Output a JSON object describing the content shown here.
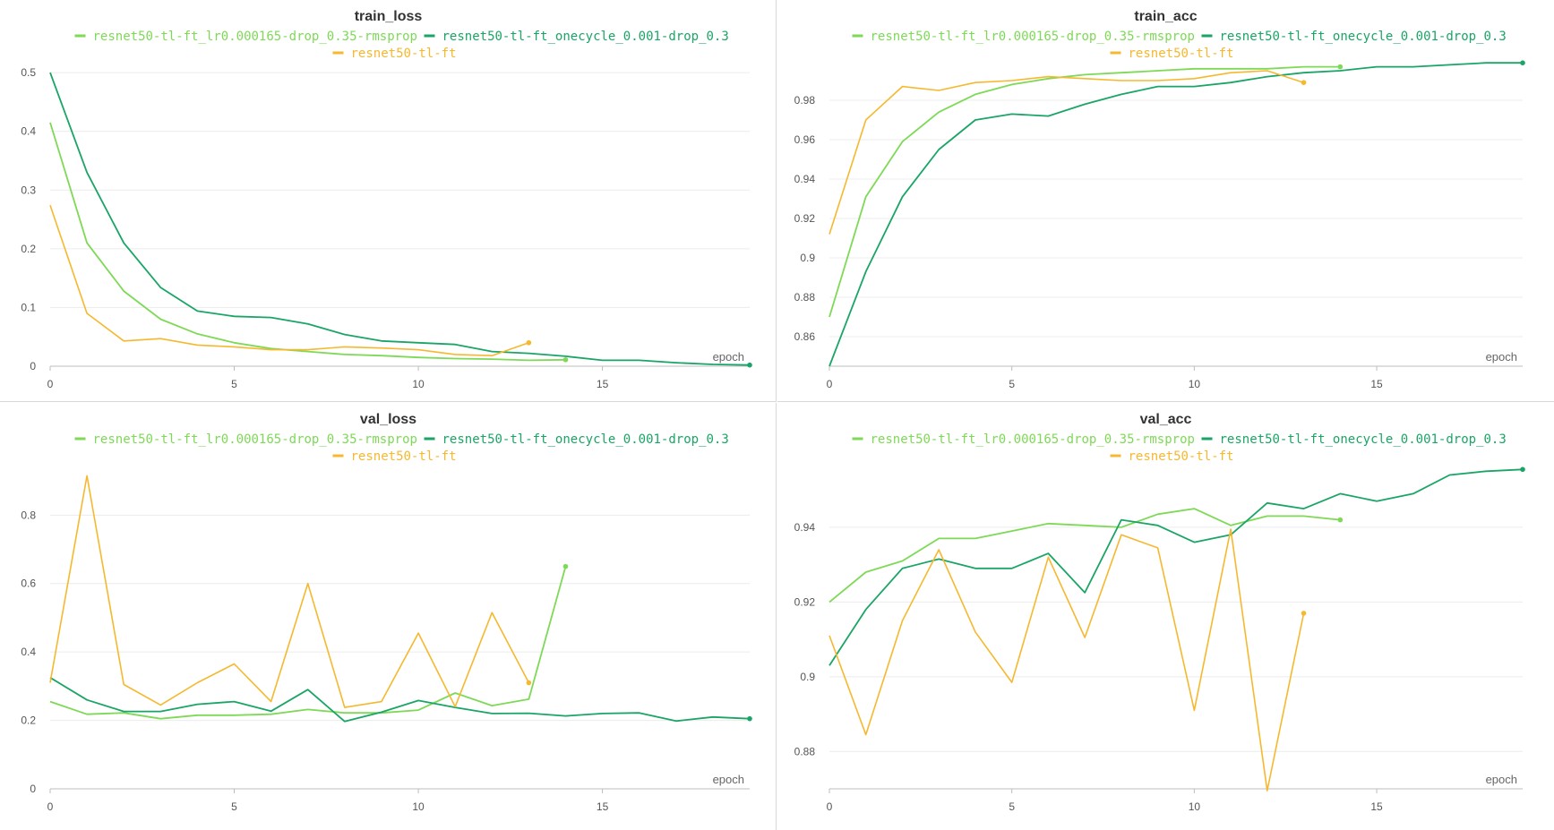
{
  "colors": {
    "series_a": "#7ed957",
    "series_b": "#1aa566",
    "series_c": "#f5b82e"
  },
  "chart_data": [
    {
      "type": "line",
      "title": "train_loss",
      "xlabel": "epoch",
      "ylabel": "",
      "xlim": [
        0,
        19
      ],
      "ylim": [
        0,
        0.52
      ],
      "xticks": [
        0,
        5,
        10,
        15
      ],
      "yticks": [
        0,
        0.1,
        0.2,
        0.3,
        0.4,
        0.5
      ],
      "ytick_labels": [
        "0",
        "0.1",
        "0.2",
        "0.3",
        "0.4",
        "0.5"
      ],
      "grid": true,
      "legend_position": "top-center",
      "series": [
        {
          "name": "resnet50-tl-ft_lr0.000165-drop_0.35-rmsprop",
          "color": "#7ed957",
          "x": [
            0,
            1,
            2,
            3,
            4,
            5,
            6,
            7,
            8,
            9,
            10,
            11,
            12,
            13,
            14
          ],
          "y": [
            0.415,
            0.21,
            0.128,
            0.08,
            0.055,
            0.04,
            0.03,
            0.025,
            0.02,
            0.018,
            0.015,
            0.013,
            0.012,
            0.01,
            0.011
          ]
        },
        {
          "name": "resnet50-tl-ft_onecycle_0.001-drop_0.3",
          "color": "#1aa566",
          "x": [
            0,
            1,
            2,
            3,
            4,
            5,
            6,
            7,
            8,
            9,
            10,
            11,
            12,
            13,
            14,
            15,
            16,
            17,
            18,
            19
          ],
          "y": [
            0.5,
            0.33,
            0.21,
            0.134,
            0.094,
            0.085,
            0.083,
            0.072,
            0.054,
            0.043,
            0.04,
            0.037,
            0.025,
            0.022,
            0.017,
            0.01,
            0.01,
            0.006,
            0.003,
            0.002
          ]
        },
        {
          "name": "resnet50-tl-ft",
          "color": "#f5b82e",
          "x": [
            0,
            1,
            2,
            3,
            4,
            5,
            6,
            7,
            8,
            9,
            10,
            11,
            12,
            13
          ],
          "y": [
            0.274,
            0.09,
            0.043,
            0.047,
            0.036,
            0.033,
            0.028,
            0.028,
            0.033,
            0.031,
            0.028,
            0.02,
            0.018,
            0.04
          ]
        }
      ]
    },
    {
      "type": "line",
      "title": "train_acc",
      "xlabel": "epoch",
      "ylabel": "",
      "xlim": [
        0,
        19
      ],
      "ylim": [
        0.845,
        1.0
      ],
      "xticks": [
        0,
        5,
        10,
        15
      ],
      "yticks": [
        0.86,
        0.88,
        0.9,
        0.92,
        0.94,
        0.96,
        0.98
      ],
      "ytick_labels": [
        "0.86",
        "0.88",
        "0.9",
        "0.92",
        "0.94",
        "0.96",
        "0.98"
      ],
      "grid": true,
      "legend_position": "top-center",
      "series": [
        {
          "name": "resnet50-tl-ft_lr0.000165-drop_0.35-rmsprop",
          "color": "#7ed957",
          "x": [
            0,
            1,
            2,
            3,
            4,
            5,
            6,
            7,
            8,
            9,
            10,
            11,
            12,
            13,
            14
          ],
          "y": [
            0.87,
            0.931,
            0.959,
            0.974,
            0.983,
            0.988,
            0.991,
            0.993,
            0.994,
            0.995,
            0.996,
            0.996,
            0.996,
            0.997,
            0.997
          ]
        },
        {
          "name": "resnet50-tl-ft_onecycle_0.001-drop_0.3",
          "color": "#1aa566",
          "x": [
            0,
            1,
            2,
            3,
            4,
            5,
            6,
            7,
            8,
            9,
            10,
            11,
            12,
            13,
            14,
            15,
            16,
            17,
            18,
            19
          ],
          "y": [
            0.845,
            0.893,
            0.931,
            0.955,
            0.97,
            0.973,
            0.972,
            0.978,
            0.983,
            0.987,
            0.987,
            0.989,
            0.992,
            0.994,
            0.995,
            0.997,
            0.997,
            0.998,
            0.999,
            0.999
          ]
        },
        {
          "name": "resnet50-tl-ft",
          "color": "#f5b82e",
          "x": [
            0,
            1,
            2,
            3,
            4,
            5,
            6,
            7,
            8,
            9,
            10,
            11,
            12,
            13
          ],
          "y": [
            0.912,
            0.97,
            0.987,
            0.985,
            0.989,
            0.99,
            0.992,
            0.991,
            0.99,
            0.99,
            0.991,
            0.994,
            0.995,
            0.989
          ]
        }
      ]
    },
    {
      "type": "line",
      "title": "val_loss",
      "xlabel": "epoch",
      "ylabel": "",
      "xlim": [
        0,
        19
      ],
      "ylim": [
        0,
        0.95
      ],
      "xticks": [
        0,
        5,
        10,
        15
      ],
      "yticks": [
        0,
        0.2,
        0.4,
        0.6,
        0.8
      ],
      "ytick_labels": [
        "0",
        "0.2",
        "0.4",
        "0.6",
        "0.8"
      ],
      "grid": true,
      "legend_position": "top-center",
      "series": [
        {
          "name": "resnet50-tl-ft_lr0.000165-drop_0.35-rmsprop",
          "color": "#7ed957",
          "x": [
            0,
            1,
            2,
            3,
            4,
            5,
            6,
            7,
            8,
            9,
            10,
            11,
            12,
            13,
            14
          ],
          "y": [
            0.255,
            0.218,
            0.222,
            0.205,
            0.215,
            0.215,
            0.218,
            0.232,
            0.222,
            0.222,
            0.23,
            0.28,
            0.243,
            0.262,
            0.65
          ]
        },
        {
          "name": "resnet50-tl-ft_onecycle_0.001-drop_0.3",
          "color": "#1aa566",
          "x": [
            0,
            1,
            2,
            3,
            4,
            5,
            6,
            7,
            8,
            9,
            10,
            11,
            12,
            13,
            14,
            15,
            16,
            17,
            18,
            19
          ],
          "y": [
            0.325,
            0.26,
            0.226,
            0.226,
            0.247,
            0.255,
            0.227,
            0.29,
            0.197,
            0.224,
            0.258,
            0.238,
            0.22,
            0.221,
            0.213,
            0.22,
            0.222,
            0.198,
            0.21,
            0.205
          ]
        },
        {
          "name": "resnet50-tl-ft",
          "color": "#f5b82e",
          "x": [
            0,
            1,
            2,
            3,
            4,
            5,
            6,
            7,
            8,
            9,
            10,
            11,
            12,
            13
          ],
          "y": [
            0.31,
            0.915,
            0.305,
            0.245,
            0.31,
            0.365,
            0.255,
            0.6,
            0.238,
            0.255,
            0.455,
            0.24,
            0.515,
            0.31
          ]
        }
      ]
    },
    {
      "type": "line",
      "title": "val_acc",
      "xlabel": "epoch",
      "ylabel": "",
      "xlim": [
        0,
        19
      ],
      "ylim": [
        0.87,
        0.957
      ],
      "xticks": [
        0,
        5,
        10,
        15
      ],
      "yticks": [
        0.88,
        0.9,
        0.92,
        0.94
      ],
      "ytick_labels": [
        "0.88",
        "0.9",
        "0.92",
        "0.94"
      ],
      "grid": true,
      "legend_position": "top-center",
      "series": [
        {
          "name": "resnet50-tl-ft_lr0.000165-drop_0.35-rmsprop",
          "color": "#7ed957",
          "x": [
            0,
            1,
            2,
            3,
            4,
            5,
            6,
            7,
            8,
            9,
            10,
            11,
            12,
            13,
            14
          ],
          "y": [
            0.92,
            0.928,
            0.931,
            0.937,
            0.937,
            0.939,
            0.941,
            0.9405,
            0.94,
            0.9435,
            0.945,
            0.9405,
            0.943,
            0.943,
            0.942
          ]
        },
        {
          "name": "resnet50-tl-ft_onecycle_0.001-drop_0.3",
          "color": "#1aa566",
          "x": [
            0,
            1,
            2,
            3,
            4,
            5,
            6,
            7,
            8,
            9,
            10,
            11,
            12,
            13,
            14,
            15,
            16,
            17,
            18,
            19
          ],
          "y": [
            0.903,
            0.918,
            0.929,
            0.9315,
            0.929,
            0.929,
            0.933,
            0.9225,
            0.942,
            0.9405,
            0.936,
            0.938,
            0.9465,
            0.945,
            0.949,
            0.947,
            0.949,
            0.954,
            0.955,
            0.9555
          ]
        },
        {
          "name": "resnet50-tl-ft",
          "color": "#f5b82e",
          "x": [
            0,
            1,
            2,
            3,
            4,
            5,
            6,
            7,
            8,
            9,
            10,
            11,
            12,
            13
          ],
          "y": [
            0.911,
            0.8845,
            0.915,
            0.934,
            0.912,
            0.8985,
            0.932,
            0.9105,
            0.938,
            0.9345,
            0.891,
            0.9395,
            0.8695,
            0.917
          ]
        }
      ]
    }
  ]
}
